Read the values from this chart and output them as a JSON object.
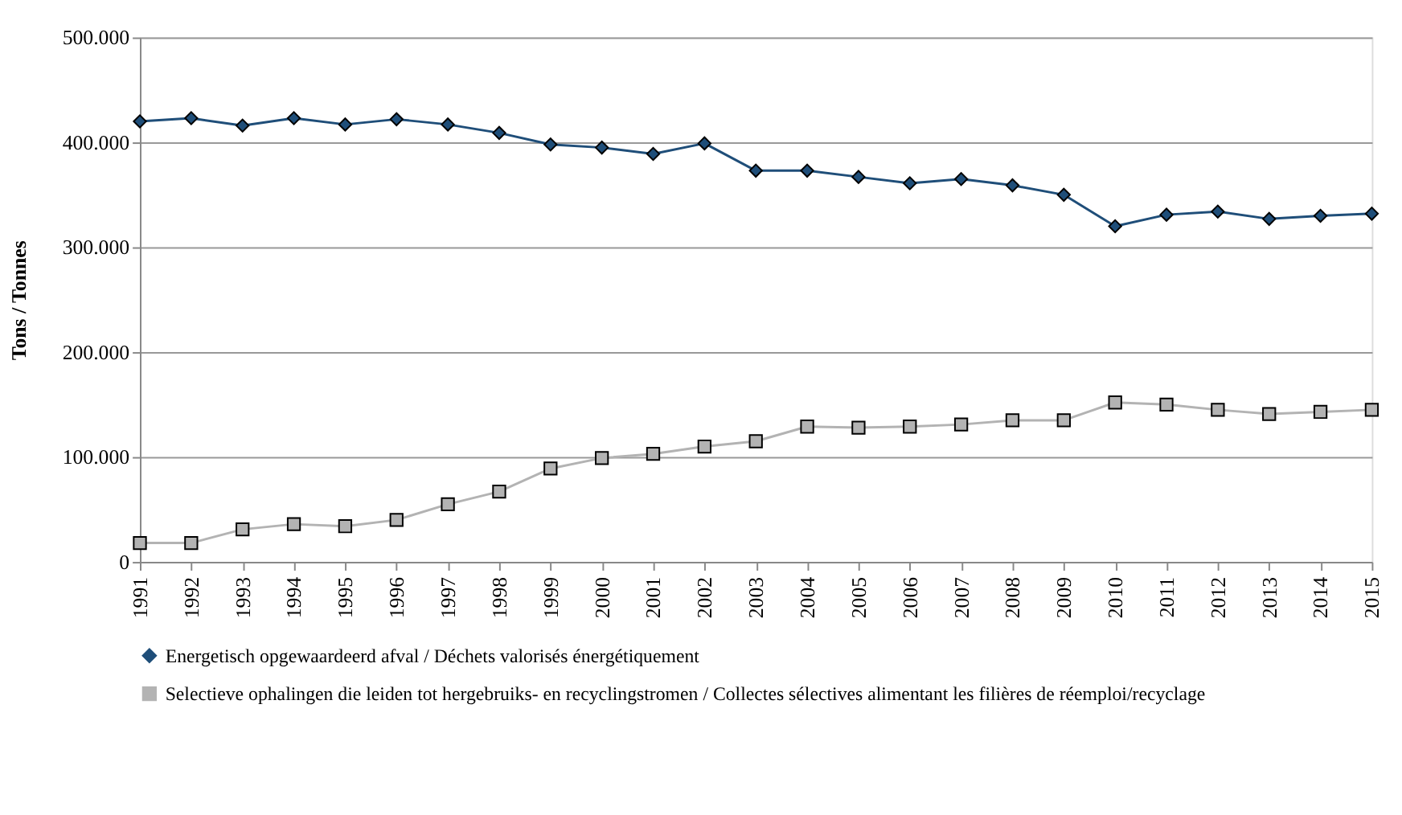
{
  "chart_data": {
    "type": "line",
    "ylabel": "Tons / Tonnes",
    "categories": [
      "1991",
      "1992",
      "1993",
      "1994",
      "1995",
      "1996",
      "1997",
      "1998",
      "1999",
      "2000",
      "2001",
      "2002",
      "2003",
      "2004",
      "2005",
      "2006",
      "2007",
      "2008",
      "2009",
      "2010",
      "2011",
      "2012",
      "2013",
      "2014",
      "2015"
    ],
    "series": [
      {
        "name": "Energetisch opgewaardeerd afval / Déchets valorisés énergétiquement",
        "color": "#1f4e79",
        "marker": "diamond",
        "values": [
          420000,
          423000,
          416000,
          423000,
          417000,
          422000,
          417000,
          409000,
          398000,
          395000,
          389000,
          399000,
          373000,
          373000,
          367000,
          361000,
          365000,
          359000,
          350000,
          320000,
          331000,
          334000,
          327000,
          330000,
          332000
        ]
      },
      {
        "name": "Selectieve ophalingen die leiden tot hergebruiks- en recyclingstromen / Collectes sélectives alimentant les filières de réemploi/recyclage",
        "color": "#b3b3b3",
        "marker": "square",
        "values": [
          18000,
          18000,
          31000,
          36000,
          34000,
          40000,
          55000,
          67000,
          89000,
          99000,
          103000,
          110000,
          115000,
          129000,
          128000,
          129000,
          131000,
          135000,
          135000,
          152000,
          150000,
          145000,
          141000,
          143000,
          145000
        ]
      }
    ],
    "ylim": [
      0,
      500000
    ],
    "yticks": [
      0,
      {
        "value": 100000,
        "label": "100.000"
      },
      {
        "value": 200000,
        "label": "200.000"
      },
      {
        "value": 300000,
        "label": "300.000"
      },
      {
        "value": 400000,
        "label": "400.000"
      },
      {
        "value": 500000,
        "label": "500.000"
      }
    ],
    "grid": "y",
    "legend": "bottom",
    "line_style": "solid"
  }
}
